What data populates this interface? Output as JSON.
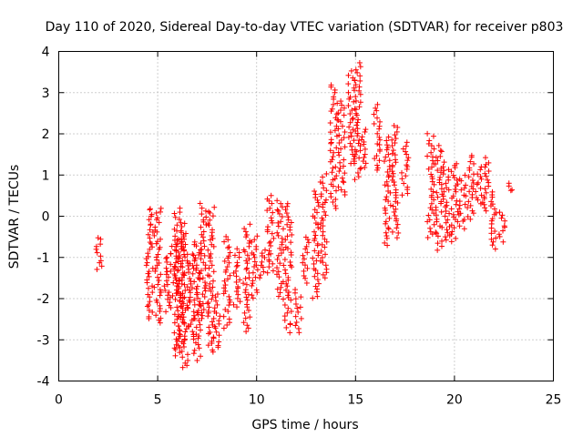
{
  "chart_data": {
    "type": "scatter",
    "title": "Day 110 of 2020, Sidereal Day-to-day VTEC variation (SDTVAR) for receiver p803",
    "xlabel": "GPS time / hours",
    "ylabel": "SDTVAR / TECUs",
    "xlim": [
      0,
      25
    ],
    "ylim": [
      -4,
      4
    ],
    "xticks": [
      0,
      5,
      10,
      15,
      20,
      25
    ],
    "yticks": [
      -4,
      -3,
      -2,
      -1,
      0,
      1,
      2,
      3,
      4
    ],
    "grid": true,
    "marker": "+",
    "color": "#ff0000",
    "clusters": [
      {
        "x": 2.0,
        "y_min": -1.3,
        "y_max": -0.5
      },
      {
        "x": 4.6,
        "y_min": -2.5,
        "y_max": 0.2
      },
      {
        "x": 5.0,
        "y_min": -2.6,
        "y_max": 0.2
      },
      {
        "x": 5.5,
        "y_min": -2.3,
        "y_max": -0.9
      },
      {
        "x": 5.8,
        "y_min": -2.0,
        "y_max": -0.6
      },
      {
        "x": 6.0,
        "y_min": -3.4,
        "y_max": 0.2
      },
      {
        "x": 6.2,
        "y_min": -3.2,
        "y_max": -0.2
      },
      {
        "x": 6.4,
        "y_min": -3.7,
        "y_max": -0.4
      },
      {
        "x": 6.7,
        "y_min": -3.0,
        "y_max": -0.9
      },
      {
        "x": 7.0,
        "y_min": -3.5,
        "y_max": -0.6
      },
      {
        "x": 7.3,
        "y_min": -2.5,
        "y_max": 0.3
      },
      {
        "x": 7.7,
        "y_min": -3.3,
        "y_max": 0.2
      },
      {
        "x": 8.0,
        "y_min": -3.2,
        "y_max": -1.9
      },
      {
        "x": 8.5,
        "y_min": -2.7,
        "y_max": -0.5
      },
      {
        "x": 9.0,
        "y_min": -2.2,
        "y_max": -0.8
      },
      {
        "x": 9.5,
        "y_min": -2.8,
        "y_max": -0.2
      },
      {
        "x": 9.9,
        "y_min": -2.0,
        "y_max": -0.5
      },
      {
        "x": 10.3,
        "y_min": -1.5,
        "y_max": -0.8
      },
      {
        "x": 10.7,
        "y_min": -1.4,
        "y_max": 0.5
      },
      {
        "x": 11.2,
        "y_min": -2.0,
        "y_max": 0.4
      },
      {
        "x": 11.6,
        "y_min": -2.8,
        "y_max": 0.3
      },
      {
        "x": 12.1,
        "y_min": -2.8,
        "y_max": -1.8
      },
      {
        "x": 12.5,
        "y_min": -1.6,
        "y_max": -0.5
      },
      {
        "x": 13.0,
        "y_min": -2.0,
        "y_max": 0.6
      },
      {
        "x": 13.4,
        "y_min": -1.5,
        "y_max": 1.0
      },
      {
        "x": 13.9,
        "y_min": 0.2,
        "y_max": 3.2
      },
      {
        "x": 14.3,
        "y_min": 0.5,
        "y_max": 2.8
      },
      {
        "x": 14.8,
        "y_min": 1.3,
        "y_max": 3.5
      },
      {
        "x": 15.1,
        "y_min": 0.9,
        "y_max": 3.7
      },
      {
        "x": 15.4,
        "y_min": 1.2,
        "y_max": 2.1
      },
      {
        "x": 16.1,
        "y_min": 1.1,
        "y_max": 2.7
      },
      {
        "x": 16.6,
        "y_min": -0.7,
        "y_max": 1.9
      },
      {
        "x": 17.0,
        "y_min": -0.5,
        "y_max": 2.2
      },
      {
        "x": 17.5,
        "y_min": 0.5,
        "y_max": 1.8
      },
      {
        "x": 18.8,
        "y_min": -0.5,
        "y_max": 2.0
      },
      {
        "x": 19.2,
        "y_min": -0.8,
        "y_max": 1.7
      },
      {
        "x": 19.6,
        "y_min": -0.6,
        "y_max": 1.3
      },
      {
        "x": 20.0,
        "y_min": -0.6,
        "y_max": 1.3
      },
      {
        "x": 20.4,
        "y_min": -0.3,
        "y_max": 1.0
      },
      {
        "x": 20.8,
        "y_min": -0.1,
        "y_max": 1.5
      },
      {
        "x": 21.2,
        "y_min": 0.3,
        "y_max": 1.2
      },
      {
        "x": 21.6,
        "y_min": 0.1,
        "y_max": 1.4
      },
      {
        "x": 22.0,
        "y_min": -0.8,
        "y_max": 0.6
      },
      {
        "x": 22.4,
        "y_min": -0.6,
        "y_max": 0.1
      },
      {
        "x": 22.8,
        "y_min": 0.6,
        "y_max": 0.8
      }
    ]
  }
}
